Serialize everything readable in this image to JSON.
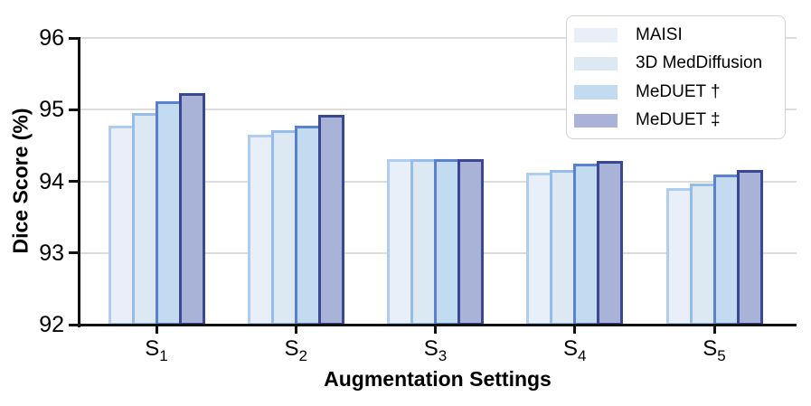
{
  "chart_data": {
    "type": "bar",
    "title": "",
    "xlabel": "Augmentation Settings",
    "ylabel": "Dice Score (%)",
    "categories": [
      "S1",
      "S2",
      "S3",
      "S4",
      "S5"
    ],
    "categories_display": [
      {
        "base": "S",
        "sub": "1"
      },
      {
        "base": "S",
        "sub": "2"
      },
      {
        "base": "S",
        "sub": "3"
      },
      {
        "base": "S",
        "sub": "4"
      },
      {
        "base": "S",
        "sub": "5"
      }
    ],
    "ylim": [
      92,
      96
    ],
    "yticks": [
      92,
      93,
      94,
      95,
      96
    ],
    "grid": "horizontal",
    "legend_position": "upper right",
    "series": [
      {
        "name": "MAISI",
        "fill": "#E9EFF8",
        "edge": "#AECDF1",
        "values": [
          94.77,
          94.65,
          94.31,
          94.12,
          93.91
        ]
      },
      {
        "name": "3D MedDiffusion",
        "fill": "#DCE8F2",
        "edge": "#96BCEC",
        "values": [
          94.95,
          94.71,
          94.31,
          94.16,
          93.97
        ]
      },
      {
        "name": "MeDUET †",
        "fill": "#C2DBF0",
        "edge": "#5A80D0",
        "values": [
          95.12,
          94.78,
          94.31,
          94.25,
          94.1
        ]
      },
      {
        "name": "MeDUET ‡",
        "fill": "#A9B3D8",
        "edge": "#3A4793",
        "values": [
          95.23,
          94.93,
          94.31,
          94.29,
          94.16
        ]
      }
    ],
    "colors": {
      "grid": "#DCDCDC",
      "spine": "#111111",
      "text": "#000000",
      "legend_border": "#D2D2D2",
      "background": "#FFFFFF"
    }
  }
}
